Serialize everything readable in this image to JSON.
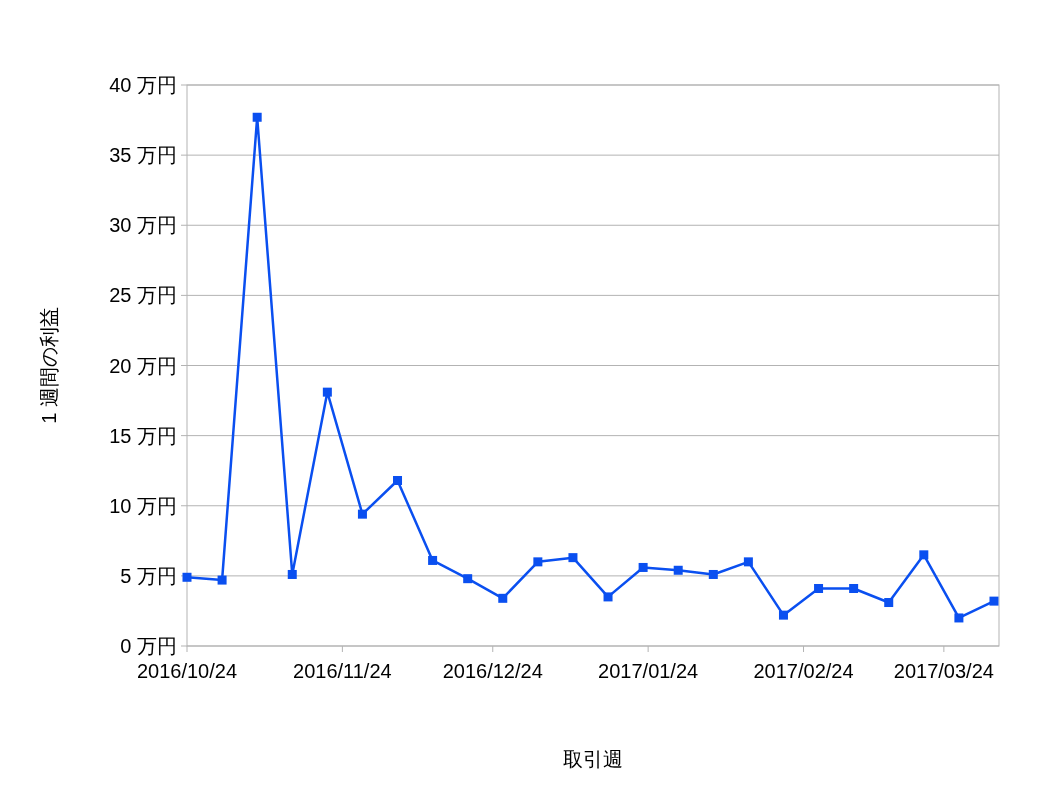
{
  "chart_data": {
    "type": "line",
    "xlabel": "取引週",
    "ylabel": "1 週間の利益",
    "x": [
      "2016-10-24",
      "2016-10-31",
      "2016-11-07",
      "2016-11-14",
      "2016-11-21",
      "2016-11-28",
      "2016-12-05",
      "2016-12-12",
      "2016-12-19",
      "2016-12-26",
      "2017-01-02",
      "2017-01-09",
      "2017-01-16",
      "2017-01-23",
      "2017-01-30",
      "2017-02-06",
      "2017-02-13",
      "2017-02-20",
      "2017-02-27",
      "2017-03-06",
      "2017-03-13",
      "2017-03-20",
      "2017-03-27",
      "2017-04-03"
    ],
    "series": [
      {
        "color": "#0a4ff0",
        "values": [
          4.9,
          4.7,
          37.7,
          5.1,
          18.1,
          9.4,
          11.8,
          6.1,
          4.8,
          3.4,
          6.0,
          6.3,
          3.5,
          5.6,
          5.4,
          5.1,
          6.0,
          2.2,
          4.1,
          4.1,
          3.1,
          6.5,
          2.0,
          3.2
        ]
      }
    ],
    "xlim": [
      "2016-10-24",
      "2017-04-04"
    ],
    "xticks": [
      {
        "value": "2016-10-24",
        "label": "2016/10/24"
      },
      {
        "value": "2016-11-24",
        "label": "2016/11/24"
      },
      {
        "value": "2016-12-24",
        "label": "2016/12/24"
      },
      {
        "value": "2017-01-24",
        "label": "2017/01/24"
      },
      {
        "value": "2017-02-24",
        "label": "2017/02/24"
      },
      {
        "value": "2017-03-24",
        "label": "2017/03/24"
      }
    ],
    "ylim": [
      0,
      40
    ],
    "yticks": [
      {
        "value": 0,
        "label": "0 万円"
      },
      {
        "value": 5,
        "label": "5 万円"
      },
      {
        "value": 10,
        "label": "10 万円"
      },
      {
        "value": 15,
        "label": "15 万円"
      },
      {
        "value": 20,
        "label": "20 万円"
      },
      {
        "value": 25,
        "label": "25 万円"
      },
      {
        "value": 30,
        "label": "30 万円"
      },
      {
        "value": 35,
        "label": "35 万円"
      },
      {
        "value": 40,
        "label": "40 万円"
      }
    ],
    "grid": "y",
    "marker": "square",
    "line_style": "solid"
  }
}
